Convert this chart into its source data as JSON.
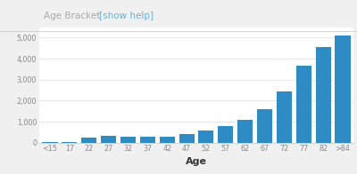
{
  "categories": [
    "<15",
    "17",
    "22",
    "27",
    "32",
    "37",
    "42",
    "47",
    "52",
    "57",
    "62",
    "67",
    "72",
    "77",
    "82",
    ">84"
  ],
  "values": [
    10,
    25,
    230,
    310,
    290,
    285,
    265,
    410,
    590,
    790,
    1090,
    1580,
    2420,
    3680,
    4560,
    5080
  ],
  "bar_color": "#2e8bc4",
  "xlabel": "Age",
  "ylim": [
    0,
    5500
  ],
  "yticks": [
    0,
    1000,
    2000,
    3000,
    4000,
    5000
  ],
  "background_color": "#f0f0f0",
  "header_background": "#f7f7f7",
  "plot_background_color": "#ffffff",
  "grid_color": "#e0e0e0",
  "title_text": "Age Bracket ",
  "title_link": "[show help]",
  "title_color": "#aaaaaa",
  "title_link_color": "#6ab0d8",
  "tick_color": "#888888",
  "bar_gap": 0.08
}
